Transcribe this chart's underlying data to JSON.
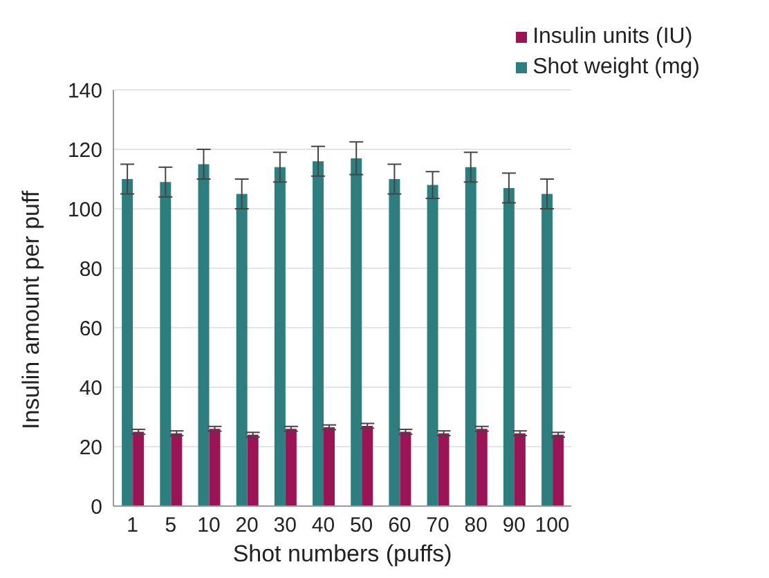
{
  "chart_data": {
    "type": "bar",
    "xlabel": "Shot numbers (puffs)",
    "ylabel": "Insulin amount per puff",
    "categories": [
      "1",
      "5",
      "10",
      "20",
      "30",
      "40",
      "50",
      "60",
      "70",
      "80",
      "90",
      "100"
    ],
    "series": [
      {
        "name": "Shot weight (mg)",
        "color": "#2e7d7f",
        "values": [
          110,
          109,
          115,
          105,
          114,
          116,
          117,
          110,
          108,
          114,
          107,
          105
        ],
        "errors": [
          5,
          5,
          5,
          5,
          5,
          5,
          5.5,
          5,
          4.5,
          5,
          5,
          5
        ]
      },
      {
        "name": "Insulin units (IU)",
        "color": "#9b1455",
        "values": [
          25,
          24.5,
          26,
          24,
          26,
          26.5,
          27,
          25,
          24.5,
          26,
          24.5,
          24
        ],
        "errors": [
          0.8,
          0.8,
          0.8,
          0.8,
          0.8,
          0.8,
          0.8,
          0.8,
          0.8,
          0.8,
          0.8,
          0.8
        ]
      }
    ],
    "ylim": [
      0,
      140
    ],
    "yticks": [
      0,
      20,
      40,
      60,
      80,
      100,
      120,
      140
    ],
    "grid": "y",
    "legend": "top right"
  }
}
